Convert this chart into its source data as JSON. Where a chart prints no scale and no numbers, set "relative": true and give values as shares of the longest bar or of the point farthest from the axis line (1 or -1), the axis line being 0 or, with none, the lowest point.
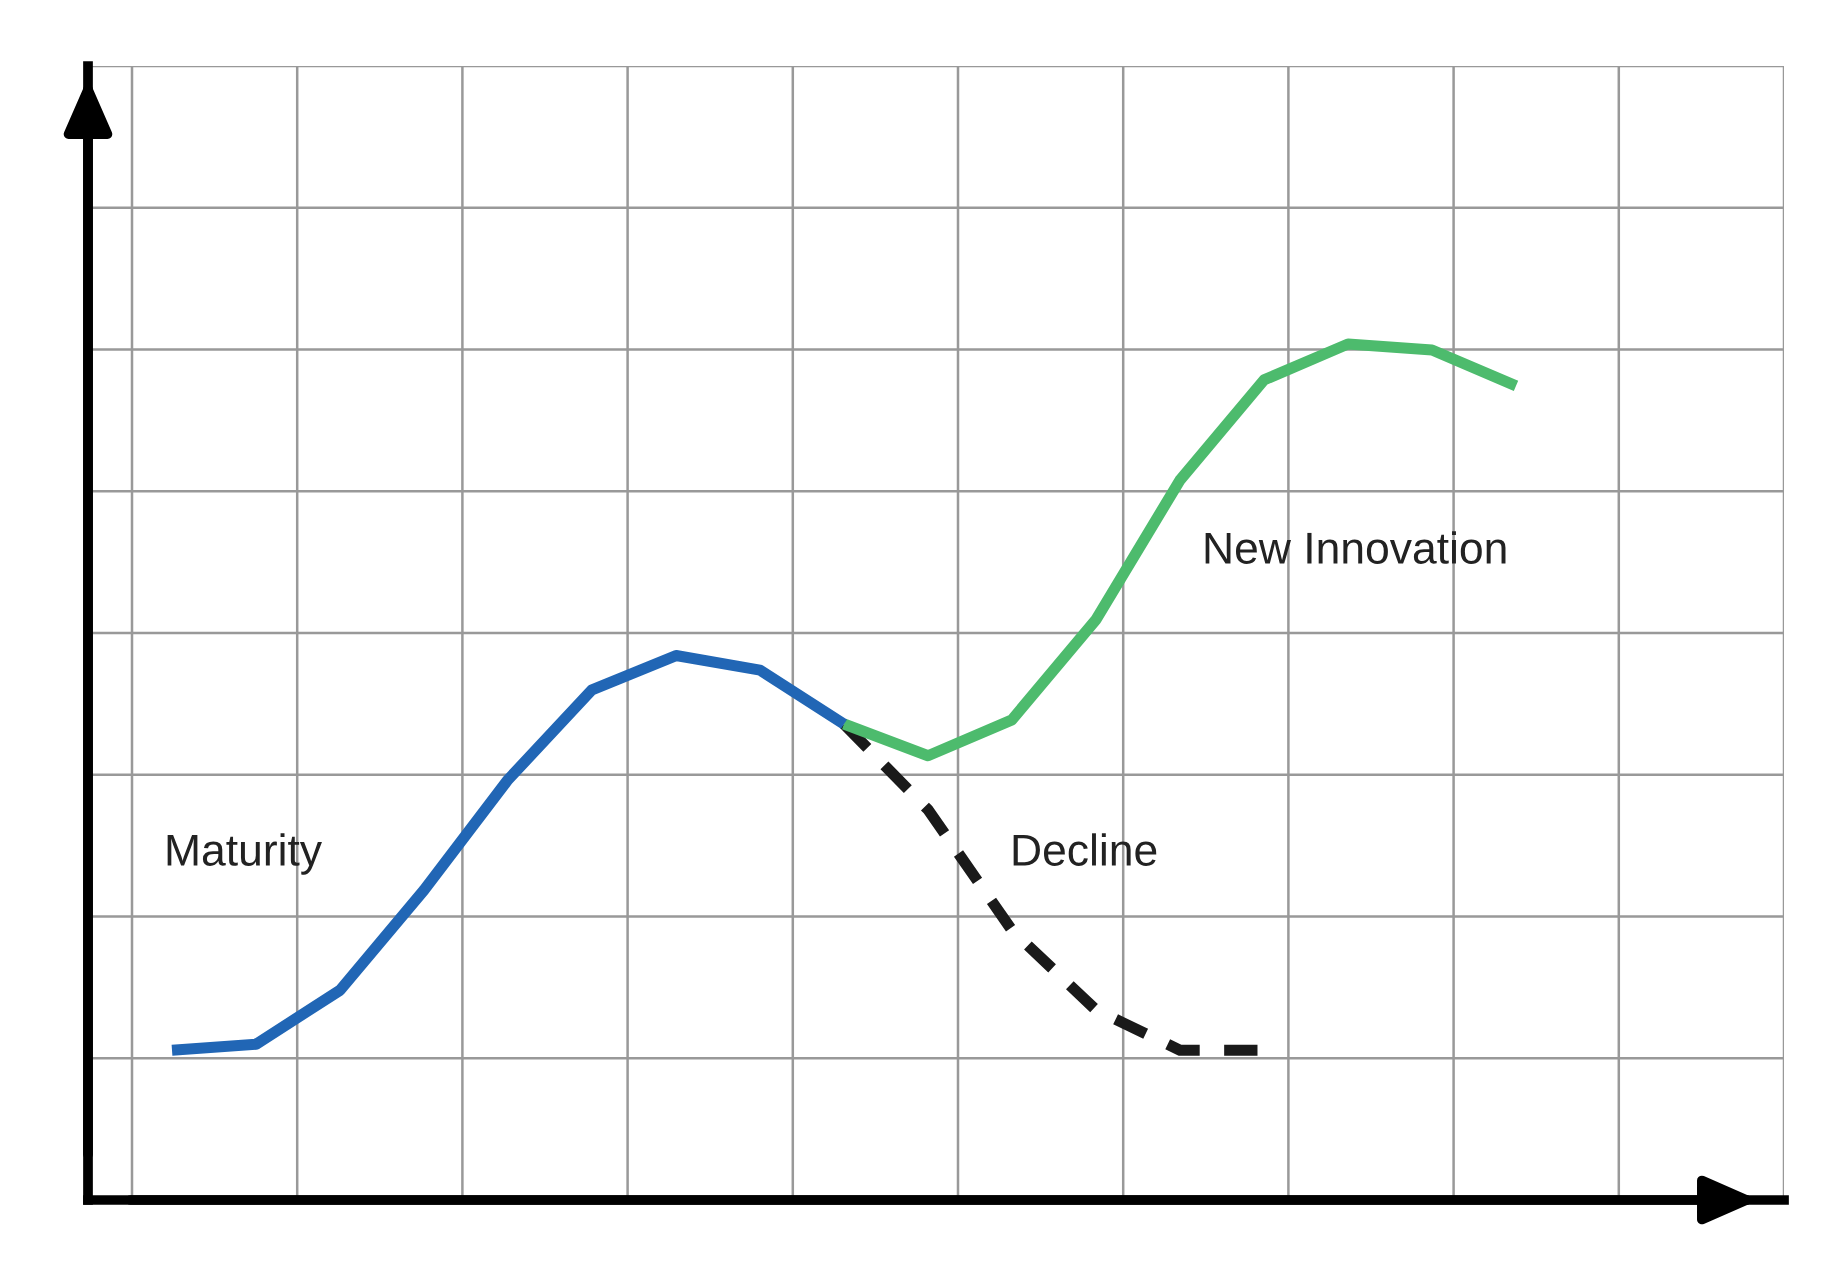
{
  "chart_data": {
    "type": "line",
    "relative": true,
    "grid": true,
    "legend": false,
    "categories": [
      null,
      null,
      null,
      null,
      null,
      null,
      null,
      null,
      null,
      null,
      null,
      null,
      null,
      null,
      null,
      null,
      null
    ],
    "series": [
      {
        "name": "Maturity",
        "color": "#2166b5",
        "line_style": "solid",
        "values": [
          0.175,
          0.182,
          0.245,
          0.362,
          0.491,
          0.596,
          0.636,
          0.619,
          0.556,
          null,
          null,
          null,
          null,
          null,
          null,
          null,
          null
        ]
      },
      {
        "name": "Decline",
        "color": "#1a1a1a",
        "line_style": "dashed",
        "values": [
          null,
          null,
          null,
          null,
          null,
          null,
          null,
          null,
          0.556,
          0.456,
          0.315,
          0.222,
          0.175,
          0.175,
          null,
          null,
          null
        ]
      },
      {
        "name": "New Innovation",
        "color": "#4dbb6d",
        "line_style": "solid",
        "values": [
          null,
          null,
          null,
          null,
          null,
          null,
          null,
          null,
          0.556,
          0.519,
          0.561,
          0.678,
          0.841,
          0.958,
          1,
          0.993,
          0.951
        ]
      }
    ]
  }
}
